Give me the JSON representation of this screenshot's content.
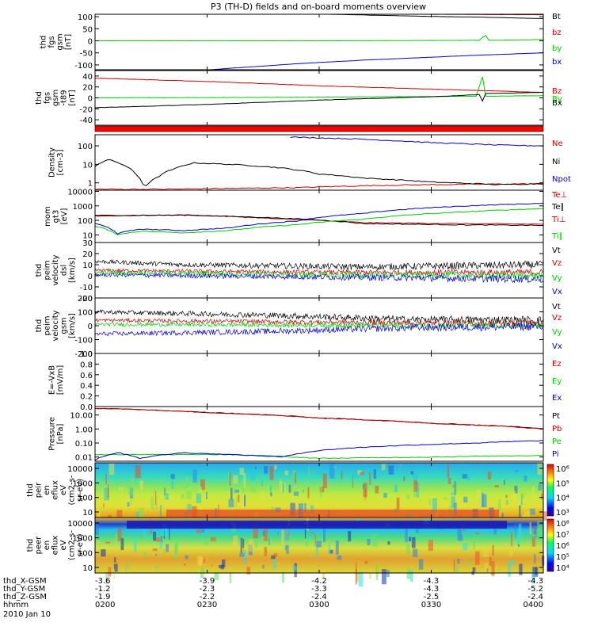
{
  "title": "P3 (TH-D) fields and on-board moments overview",
  "colors": {
    "black": "#000000",
    "red": "#cc0000",
    "green": "#00cc00",
    "blue": "#0000cc",
    "flag_bar": "#ff0000"
  },
  "chart_data": [
    {
      "type": "line",
      "id": "p1",
      "ylabel": [
        "thd",
        "fgs",
        "gsm",
        "[nT]"
      ],
      "ylim": [
        -120,
        110
      ],
      "yticks": [
        "100",
        "50",
        "0",
        "-50",
        "-100"
      ],
      "legend": [
        "Bt",
        "bz",
        "by",
        "bx"
      ],
      "series": [
        {
          "name": "Bt",
          "color": "black",
          "values": [
            {
              "x": 0.0,
              "y": 135
            },
            {
              "x": 0.19,
              "y": 125
            },
            {
              "x": 0.5,
              "y": 111
            },
            {
              "x": 0.75,
              "y": 101
            },
            {
              "x": 0.86,
              "y": 98
            },
            {
              "x": 1.0,
              "y": 92
            }
          ]
        },
        {
          "name": "bz",
          "color": "red",
          "values": [
            {
              "x": 0.0,
              "y": 130
            },
            {
              "x": 0.19,
              "y": 124
            },
            {
              "x": 0.5,
              "y": 112
            },
            {
              "x": 1.0,
              "y": 108
            }
          ]
        },
        {
          "name": "by",
          "color": "green",
          "values": [
            {
              "x": 0.0,
              "y": 0
            },
            {
              "x": 0.5,
              "y": 0
            },
            {
              "x": 0.86,
              "y": 2
            },
            {
              "x": 0.87,
              "y": 30
            },
            {
              "x": 0.875,
              "y": 2
            },
            {
              "x": 1.0,
              "y": 5
            }
          ]
        },
        {
          "name": "bx",
          "color": "blue",
          "values": [
            {
              "x": 0.19,
              "y": -130
            },
            {
              "x": 0.27,
              "y": -118
            },
            {
              "x": 0.45,
              "y": -95
            },
            {
              "x": 0.6,
              "y": -80
            },
            {
              "x": 0.85,
              "y": -60
            },
            {
              "x": 1.0,
              "y": -50
            }
          ]
        }
      ]
    },
    {
      "type": "line",
      "id": "p2",
      "ylabel": [
        "thd",
        "fgs",
        "gsm",
        "-t89",
        "[nT]"
      ],
      "ylim": [
        -50,
        50
      ],
      "yticks": [
        "40",
        "20",
        "0",
        "-20",
        "-40"
      ],
      "legend": [
        "Bz",
        "By",
        "Bx"
      ],
      "series": [
        {
          "name": "Bz",
          "color": "red",
          "values": [
            {
              "x": 0.0,
              "y": 36
            },
            {
              "x": 0.25,
              "y": 30
            },
            {
              "x": 0.5,
              "y": 22
            },
            {
              "x": 0.75,
              "y": 16
            },
            {
              "x": 1.0,
              "y": 10
            }
          ]
        },
        {
          "name": "By",
          "color": "green",
          "values": [
            {
              "x": 0.0,
              "y": 0
            },
            {
              "x": 0.4,
              "y": 1
            },
            {
              "x": 0.85,
              "y": 3
            },
            {
              "x": 0.865,
              "y": 40
            },
            {
              "x": 0.87,
              "y": 3
            },
            {
              "x": 1.0,
              "y": 4
            }
          ]
        },
        {
          "name": "Bx",
          "color": "black",
          "values": [
            {
              "x": 0.0,
              "y": -18
            },
            {
              "x": 0.25,
              "y": -12
            },
            {
              "x": 0.5,
              "y": -4
            },
            {
              "x": 0.75,
              "y": 2
            },
            {
              "x": 0.86,
              "y": 6
            },
            {
              "x": 0.865,
              "y": -8
            },
            {
              "x": 0.87,
              "y": 8
            },
            {
              "x": 1.0,
              "y": 10
            }
          ]
        }
      ]
    },
    {
      "type": "line",
      "id": "p3",
      "scale": "log",
      "ylabel": [
        "Density",
        "[cm-3]"
      ],
      "ylim": [
        0.4,
        400
      ],
      "yticks": [
        "100",
        "10",
        "1"
      ],
      "legend": [
        "Ne",
        "Ni",
        "Npot"
      ],
      "series": [
        {
          "name": "Ne",
          "color": "red",
          "values": [
            {
              "x": 0.0,
              "y": 0.45
            },
            {
              "x": 0.15,
              "y": 0.45
            },
            {
              "x": 0.3,
              "y": 0.5
            },
            {
              "x": 0.45,
              "y": 0.55
            },
            {
              "x": 0.6,
              "y": 0.7
            },
            {
              "x": 0.75,
              "y": 0.8
            },
            {
              "x": 1.0,
              "y": 0.9
            }
          ]
        },
        {
          "name": "Ni",
          "color": "black",
          "values": [
            {
              "x": 0.0,
              "y": 8
            },
            {
              "x": 0.03,
              "y": 18
            },
            {
              "x": 0.06,
              "y": 10
            },
            {
              "x": 0.09,
              "y": 3
            },
            {
              "x": 0.11,
              "y": 0.5
            },
            {
              "x": 0.14,
              "y": 2
            },
            {
              "x": 0.18,
              "y": 6
            },
            {
              "x": 0.22,
              "y": 12
            },
            {
              "x": 0.3,
              "y": 10
            },
            {
              "x": 0.4,
              "y": 7
            },
            {
              "x": 0.5,
              "y": 3
            },
            {
              "x": 0.6,
              "y": 1.8
            },
            {
              "x": 0.75,
              "y": 1.1
            },
            {
              "x": 0.9,
              "y": 0.8
            },
            {
              "x": 1.0,
              "y": 0.9
            }
          ]
        },
        {
          "name": "Npot",
          "color": "blue",
          "values": [
            {
              "x": 0.43,
              "y": 300
            },
            {
              "x": 0.55,
              "y": 250
            },
            {
              "x": 0.75,
              "y": 150
            },
            {
              "x": 0.9,
              "y": 110
            },
            {
              "x": 1.0,
              "y": 100
            }
          ]
        }
      ]
    },
    {
      "type": "line",
      "id": "p4",
      "scale": "log",
      "ylabel": [
        "mom",
        "gt3",
        "[eV]"
      ],
      "ylim": [
        3,
        12000
      ],
      "yticks": [
        "10000",
        "1000",
        "100",
        "10"
      ],
      "legend": [
        "Te⊥",
        "Te∥",
        "Ti⊥",
        "Ti∥"
      ],
      "series": [
        {
          "name": "Te⊥",
          "color": "red",
          "values": [
            {
              "x": 0.0,
              "y": 200
            },
            {
              "x": 0.2,
              "y": 240
            },
            {
              "x": 0.4,
              "y": 130
            },
            {
              "x": 0.6,
              "y": 70
            },
            {
              "x": 0.8,
              "y": 60
            },
            {
              "x": 1.0,
              "y": 55
            }
          ]
        },
        {
          "name": "Te∥",
          "color": "black",
          "values": [
            {
              "x": 0.0,
              "y": 220
            },
            {
              "x": 0.2,
              "y": 230
            },
            {
              "x": 0.4,
              "y": 150
            },
            {
              "x": 0.6,
              "y": 60
            },
            {
              "x": 0.8,
              "y": 50
            },
            {
              "x": 1.0,
              "y": 45
            }
          ]
        },
        {
          "name": "Ti⊥",
          "color": "blue",
          "values": [
            {
              "x": 0.0,
              "y": 60
            },
            {
              "x": 0.05,
              "y": 12
            },
            {
              "x": 0.1,
              "y": 25
            },
            {
              "x": 0.2,
              "y": 20
            },
            {
              "x": 0.3,
              "y": 30
            },
            {
              "x": 0.45,
              "y": 90
            },
            {
              "x": 0.6,
              "y": 300
            },
            {
              "x": 0.8,
              "y": 900
            },
            {
              "x": 1.0,
              "y": 1500
            }
          ]
        },
        {
          "name": "Ti∥",
          "color": "green",
          "values": [
            {
              "x": 0.0,
              "y": 40
            },
            {
              "x": 0.05,
              "y": 10
            },
            {
              "x": 0.1,
              "y": 18
            },
            {
              "x": 0.2,
              "y": 14
            },
            {
              "x": 0.3,
              "y": 20
            },
            {
              "x": 0.45,
              "y": 50
            },
            {
              "x": 0.6,
              "y": 120
            },
            {
              "x": 0.8,
              "y": 350
            },
            {
              "x": 1.0,
              "y": 650
            }
          ]
        }
      ]
    },
    {
      "type": "line",
      "id": "p5",
      "noisy": true,
      "ylabel": [
        "thd",
        "peim",
        "velocity",
        "dsl",
        "[km/s]"
      ],
      "ylim": [
        -20,
        30
      ],
      "yticks": [
        "30",
        "20",
        "10",
        "0",
        "-10",
        "-20"
      ],
      "legend": [
        "Vt",
        "Vz",
        "Vy",
        "Vx"
      ],
      "series": [
        {
          "name": "Vt",
          "color": "black",
          "values": [
            {
              "x": 0.0,
              "y": 13
            },
            {
              "x": 0.2,
              "y": 10
            },
            {
              "x": 0.6,
              "y": 8
            },
            {
              "x": 1.0,
              "y": 10
            }
          ],
          "noise": 3.0
        },
        {
          "name": "Vz",
          "color": "red",
          "values": [
            {
              "x": 0.0,
              "y": 5
            },
            {
              "x": 0.5,
              "y": 3
            },
            {
              "x": 1.0,
              "y": 3
            }
          ],
          "noise": 2.5
        },
        {
          "name": "Vy",
          "color": "green",
          "values": [
            {
              "x": 0.0,
              "y": 3
            },
            {
              "x": 0.5,
              "y": 1
            },
            {
              "x": 1.0,
              "y": 0
            }
          ],
          "noise": 3.0
        },
        {
          "name": "Vx",
          "color": "blue",
          "values": [
            {
              "x": 0.0,
              "y": 1
            },
            {
              "x": 0.5,
              "y": -1
            },
            {
              "x": 1.0,
              "y": -3
            }
          ],
          "noise": 3.0
        }
      ]
    },
    {
      "type": "line",
      "id": "p6",
      "noisy": true,
      "ylabel": [
        "thd",
        "peim",
        "velocity",
        "gsm",
        "[km/s]"
      ],
      "ylim": [
        -200,
        200
      ],
      "yticks": [
        "200",
        "100",
        "0",
        "-100",
        "-200"
      ],
      "legend": [
        "Vt",
        "Vz",
        "Vy",
        "Vx"
      ],
      "series": [
        {
          "name": "Vt",
          "color": "black",
          "values": [
            {
              "x": 0.0,
              "y": 100
            },
            {
              "x": 0.4,
              "y": 75
            },
            {
              "x": 0.7,
              "y": 45
            },
            {
              "x": 1.0,
              "y": 40
            }
          ],
          "noise": 25
        },
        {
          "name": "Vz",
          "color": "red",
          "values": [
            {
              "x": 0.0,
              "y": 40
            },
            {
              "x": 0.5,
              "y": 25
            },
            {
              "x": 1.0,
              "y": 15
            }
          ],
          "noise": 20
        },
        {
          "name": "Vy",
          "color": "green",
          "values": [
            {
              "x": 0.0,
              "y": 10
            },
            {
              "x": 0.5,
              "y": 5
            },
            {
              "x": 1.0,
              "y": 0
            }
          ],
          "noise": 20
        },
        {
          "name": "Vx",
          "color": "blue",
          "values": [
            {
              "x": 0.0,
              "y": -60
            },
            {
              "x": 0.4,
              "y": -40
            },
            {
              "x": 0.7,
              "y": -15
            },
            {
              "x": 1.0,
              "y": -5
            }
          ],
          "noise": 25
        }
      ]
    },
    {
      "type": "line",
      "id": "p7",
      "ylabel": [
        "E=-VxB",
        "[mV/m]"
      ],
      "ylim": [
        0.0,
        1.0
      ],
      "yticks": [
        "1.0",
        "0.8",
        "0.6",
        "0.4",
        "0.2",
        "0.0"
      ],
      "legend": [
        "Ez",
        "Ey",
        "Ex"
      ],
      "series": []
    },
    {
      "type": "line",
      "id": "p8",
      "scale": "log",
      "ylabel": [
        "Pressure",
        "[nPa]"
      ],
      "ylim": [
        0.005,
        40
      ],
      "yticks": [
        "10.00",
        "1.00",
        "0.10",
        "0.01"
      ],
      "legend": [
        "Pt",
        "Pb",
        "Pe",
        "Pi"
      ],
      "series": [
        {
          "name": "Pt",
          "color": "black",
          "values": [
            {
              "x": 0.0,
              "y": 30
            },
            {
              "x": 0.25,
              "y": 15
            },
            {
              "x": 0.5,
              "y": 6
            },
            {
              "x": 0.75,
              "y": 2.5
            },
            {
              "x": 1.0,
              "y": 1.1
            }
          ]
        },
        {
          "name": "Pb",
          "color": "red",
          "values": [
            {
              "x": 0.0,
              "y": 30
            },
            {
              "x": 0.25,
              "y": 15
            },
            {
              "x": 0.5,
              "y": 6
            },
            {
              "x": 0.75,
              "y": 2.5
            },
            {
              "x": 1.0,
              "y": 1.0
            }
          ]
        },
        {
          "name": "Pe",
          "color": "green",
          "values": [
            {
              "x": 0.0,
              "y": 0.015
            },
            {
              "x": 0.3,
              "y": 0.015
            },
            {
              "x": 0.5,
              "y": 0.008
            },
            {
              "x": 0.75,
              "y": 0.01
            },
            {
              "x": 1.0,
              "y": 0.013
            }
          ]
        },
        {
          "name": "Pi",
          "color": "blue",
          "values": [
            {
              "x": 0.0,
              "y": 0.006
            },
            {
              "x": 0.05,
              "y": 0.02
            },
            {
              "x": 0.1,
              "y": 0.008
            },
            {
              "x": 0.2,
              "y": 0.02
            },
            {
              "x": 0.3,
              "y": 0.015
            },
            {
              "x": 0.42,
              "y": 0.01
            },
            {
              "x": 0.55,
              "y": 0.04
            },
            {
              "x": 0.7,
              "y": 0.07
            },
            {
              "x": 0.85,
              "y": 0.1
            },
            {
              "x": 1.0,
              "y": 0.15
            }
          ]
        }
      ]
    },
    {
      "type": "heatmap",
      "id": "p9",
      "ylabel": [
        "thd",
        "peir",
        "en",
        "eflux",
        "eV",
        "(cm2-s-",
        "sr-eV)"
      ],
      "yticks": [
        "10000",
        "1000",
        "100",
        "10"
      ],
      "colorbar_ticks": [
        "10⁶",
        "10⁵",
        "10⁴",
        "10³"
      ]
    },
    {
      "type": "heatmap",
      "id": "p10",
      "ylabel": [
        "thd",
        "peer",
        "en",
        "eflux",
        "eV",
        "(cm2-s-",
        "sr-eV)"
      ],
      "yticks": [
        "10000",
        "1000",
        "100",
        "10"
      ],
      "colorbar_ticks": [
        "10⁸",
        "10⁷",
        "10⁶",
        "10⁵",
        "10⁴"
      ]
    }
  ],
  "xaxis": {
    "rows": [
      {
        "label": "thd_X-GSM",
        "values": [
          "-3.6",
          "-3.9",
          "-4.2",
          "-4.3",
          "-4.3"
        ]
      },
      {
        "label": "thd_Y-GSM",
        "values": [
          "-1.2",
          "-2.3",
          "-3.3",
          "-4.3",
          "-5.2"
        ]
      },
      {
        "label": "thd_Z-GSM",
        "values": [
          "-1.9",
          "-2.2",
          "-2.4",
          "-2.5",
          "-2.4"
        ]
      },
      {
        "label": "hhmm",
        "values": [
          "0200",
          "0230",
          "0300",
          "0330",
          "0400"
        ]
      }
    ],
    "date": "2010 Jan 10"
  }
}
